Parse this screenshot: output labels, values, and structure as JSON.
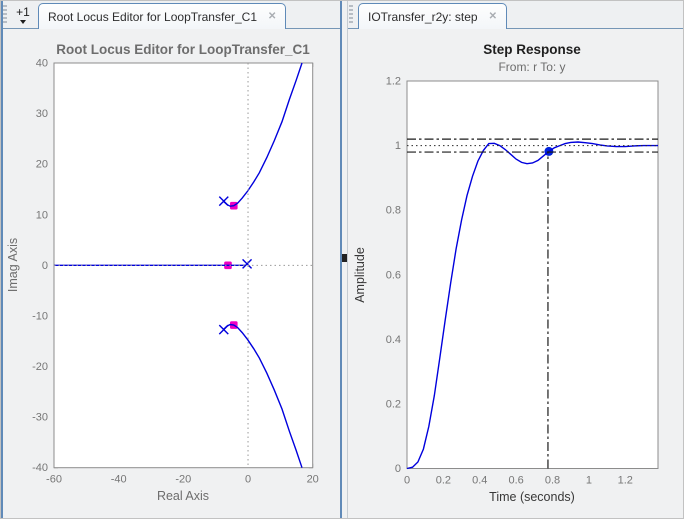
{
  "icons": {
    "close_glyph": "✕"
  },
  "left_panel": {
    "overflow_label": "+1",
    "tab_label": "Root Locus Editor for LoopTransfer_C1"
  },
  "right_panel": {
    "tab_label": "IOTransfer_r2y: step"
  },
  "colors": {
    "accent_tab_border": "#5f8ab8",
    "locus_blue": "#0000dd",
    "closed_loop_magenta": "#ef00c3",
    "axes_gray": "#8c8c8c"
  },
  "chart_data": [
    {
      "id": "root_locus",
      "type": "line",
      "title": "Root Locus Editor for LoopTransfer_C1",
      "xlabel": "Real Axis",
      "ylabel": "Imag Axis",
      "xlim": [
        -60,
        20
      ],
      "ylim": [
        -40,
        40
      ],
      "xticks": [
        -60,
        -40,
        -20,
        0,
        20
      ],
      "yticks": [
        40,
        30,
        20,
        10,
        0,
        -10,
        -20,
        -30,
        -40
      ],
      "grid": false,
      "zero_lines_dotted": true,
      "legend": "none",
      "branches": [
        [
          [
            -60,
            0
          ],
          [
            -0.9,
            0
          ]
        ],
        [
          [
            -7.5,
            12.6
          ],
          [
            -6.5,
            12.0
          ],
          [
            -5.5,
            11.7
          ],
          [
            -4.4,
            11.8
          ],
          [
            -3.2,
            12.3
          ],
          [
            -1.8,
            13.3
          ],
          [
            -0.1,
            14.7
          ],
          [
            1.8,
            16.5
          ],
          [
            3.5,
            18.3
          ],
          [
            5.8,
            21.3
          ],
          [
            8.1,
            24.6
          ],
          [
            10.5,
            28.4
          ],
          [
            12.8,
            32.8
          ],
          [
            14.9,
            36.6
          ],
          [
            16.7,
            40
          ]
        ],
        [
          [
            -7.5,
            -12.6
          ],
          [
            -6.5,
            -12.0
          ],
          [
            -5.5,
            -11.7
          ],
          [
            -4.4,
            -11.8
          ],
          [
            -3.2,
            -12.3
          ],
          [
            -1.8,
            -13.3
          ],
          [
            -0.1,
            -14.7
          ],
          [
            1.8,
            -16.5
          ],
          [
            3.5,
            -18.3
          ],
          [
            5.8,
            -21.3
          ],
          [
            8.1,
            -24.6
          ],
          [
            10.5,
            -28.4
          ],
          [
            12.8,
            -32.8
          ],
          [
            14.9,
            -36.6
          ],
          [
            16.7,
            -40
          ]
        ]
      ],
      "open_loop_poles": [
        [
          -7.5,
          12.7
        ],
        [
          -7.5,
          -12.7
        ],
        [
          -0.3,
          0.3
        ]
      ],
      "closed_loop_poles": [
        [
          -4.4,
          11.8
        ],
        [
          -4.4,
          -11.8
        ],
        [
          -6.2,
          0
        ]
      ],
      "colors": {
        "locus": "#0000dd",
        "pole_marker": "#0000dd",
        "closed_loop_pole_marker": "#ef00c3"
      }
    },
    {
      "id": "step_response",
      "type": "line",
      "title": "Step Response",
      "subtitle": "From: r  To: y",
      "xlabel": "Time (seconds)",
      "ylabel": "Amplitude",
      "xlim": [
        0,
        1.38
      ],
      "ylim": [
        0,
        1.2
      ],
      "xticks": [
        0,
        0.2,
        0.4,
        0.6,
        0.8,
        1,
        1.2
      ],
      "yticks": [
        0,
        0.2,
        0.4,
        0.6,
        0.8,
        1,
        1.2
      ],
      "grid": false,
      "legend": "none",
      "series": [
        {
          "name": "step response r to y",
          "x": [
            0,
            0.03,
            0.06,
            0.09,
            0.12,
            0.15,
            0.18,
            0.21,
            0.24,
            0.27,
            0.3,
            0.33,
            0.36,
            0.39,
            0.42,
            0.45,
            0.48,
            0.51,
            0.54,
            0.57,
            0.6,
            0.63,
            0.66,
            0.69,
            0.72,
            0.75,
            0.78,
            0.81,
            0.84,
            0.87,
            0.9,
            0.94,
            0.98,
            1.02,
            1.06,
            1.1,
            1.15,
            1.2,
            1.25,
            1.3,
            1.38
          ],
          "y": [
            0,
            0.004,
            0.02,
            0.06,
            0.13,
            0.225,
            0.34,
            0.46,
            0.575,
            0.68,
            0.77,
            0.845,
            0.905,
            0.952,
            0.985,
            1.006,
            1.007,
            1.0,
            0.988,
            0.973,
            0.958,
            0.948,
            0.944,
            0.946,
            0.954,
            0.968,
            0.982,
            0.993,
            1.0,
            1.006,
            1.01,
            1.011,
            1.009,
            1.006,
            1.002,
            0.999,
            0.997,
            0.997,
            0.999,
            1.0,
            1.0
          ]
        }
      ],
      "marker": {
        "x": 0.78,
        "y": 0.982
      },
      "reference_lines": {
        "upper_bound": 1.02,
        "steady_state": 1.0,
        "lower_bound": 0.98,
        "marker_time_line": 0.775
      },
      "colors": {
        "line": "#0000dd",
        "marker": "#0022dd",
        "bounds": "#1a1a1a"
      }
    }
  ]
}
